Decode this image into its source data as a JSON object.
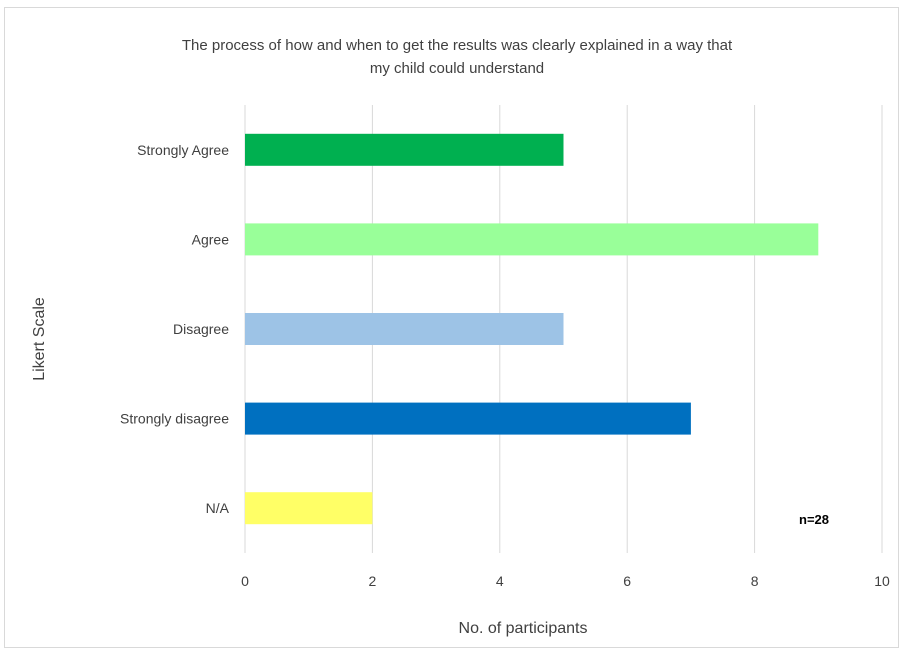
{
  "chart_data": {
    "type": "bar",
    "orientation": "horizontal",
    "title": "The process of how and when to get the results was clearly explained in a way that my child could understand",
    "title_lines": [
      "The process of how and when to get the results was clearly explained in a way that",
      "my child could understand"
    ],
    "categories": [
      "Strongly Agree",
      "Agree",
      "Disagree",
      "Strongly disagree",
      "N/A"
    ],
    "values": [
      5,
      9,
      5,
      7,
      2
    ],
    "colors": [
      "#00b050",
      "#99ff99",
      "#9dc3e6",
      "#0070c0",
      "#ffff66"
    ],
    "xlabel": "No. of participants",
    "ylabel": "Likert Scale",
    "xlim": [
      0,
      10
    ],
    "xticks": [
      "0",
      "2",
      "4",
      "6",
      "8",
      "10"
    ],
    "grid": true,
    "annotation": "n=28"
  }
}
